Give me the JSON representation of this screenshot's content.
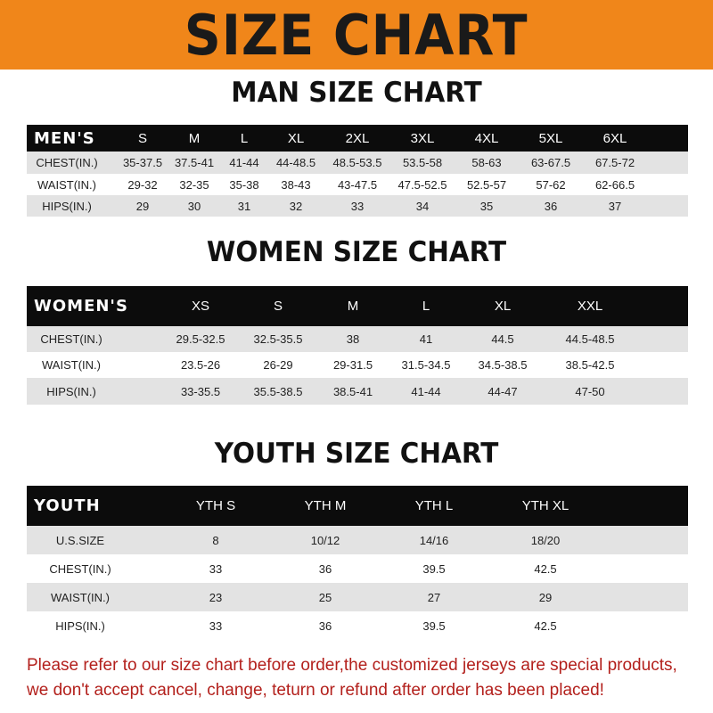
{
  "title": "SIZE CHART",
  "colors": {
    "banner": "#f0861a",
    "header_row": "#0c0c0c",
    "note": "#b3201c"
  },
  "men": {
    "title": "MAN SIZE CHART",
    "header": [
      "MEN'S",
      "S",
      "M",
      "L",
      "XL",
      "2XL",
      "3XL",
      "4XL",
      "5XL",
      "6XL"
    ],
    "rows": [
      [
        "CHEST(IN.)",
        "35-37.5",
        "37.5-41",
        "41-44",
        "44-48.5",
        "48.5-53.5",
        "53.5-58",
        "58-63",
        "63-67.5",
        "67.5-72"
      ],
      [
        "WAIST(IN.)",
        "29-32",
        "32-35",
        "35-38",
        "38-43",
        "43-47.5",
        "47.5-52.5",
        "52.5-57",
        "57-62",
        "62-66.5"
      ],
      [
        "HIPS(IN.)",
        "29",
        "30",
        "31",
        "32",
        "33",
        "34",
        "35",
        "36",
        "37"
      ]
    ]
  },
  "women": {
    "title": "WOMEN SIZE CHART",
    "header": [
      "WOMEN'S",
      "XS",
      "S",
      "M",
      "L",
      "XL",
      "XXL"
    ],
    "rows": [
      [
        "CHEST(IN.)",
        "29.5-32.5",
        "32.5-35.5",
        "38",
        "41",
        "44.5",
        "44.5-48.5"
      ],
      [
        "WAIST(IN.)",
        "23.5-26",
        "26-29",
        "29-31.5",
        "31.5-34.5",
        "34.5-38.5",
        "38.5-42.5"
      ],
      [
        "HIPS(IN.)",
        "33-35.5",
        "35.5-38.5",
        "38.5-41",
        "41-44",
        "44-47",
        "47-50"
      ]
    ]
  },
  "youth": {
    "title": "YOUTH SIZE CHART",
    "header": [
      "YOUTH",
      "YTH S",
      "YTH M",
      "YTH L",
      "YTH XL"
    ],
    "rows": [
      [
        "U.S.SIZE",
        "8",
        "10/12",
        "14/16",
        "18/20"
      ],
      [
        "CHEST(IN.)",
        "33",
        "36",
        "39.5",
        "42.5"
      ],
      [
        "WAIST(IN.)",
        "23",
        "25",
        "27",
        "29"
      ],
      [
        "HIPS(IN.)",
        "33",
        "36",
        "39.5",
        "42.5"
      ]
    ]
  },
  "note": {
    "line1": "Please refer to our size chart before order,the customized jerseys are special products,",
    "line2": "we don't accept cancel, change, teturn or refund after order has been placed!"
  }
}
